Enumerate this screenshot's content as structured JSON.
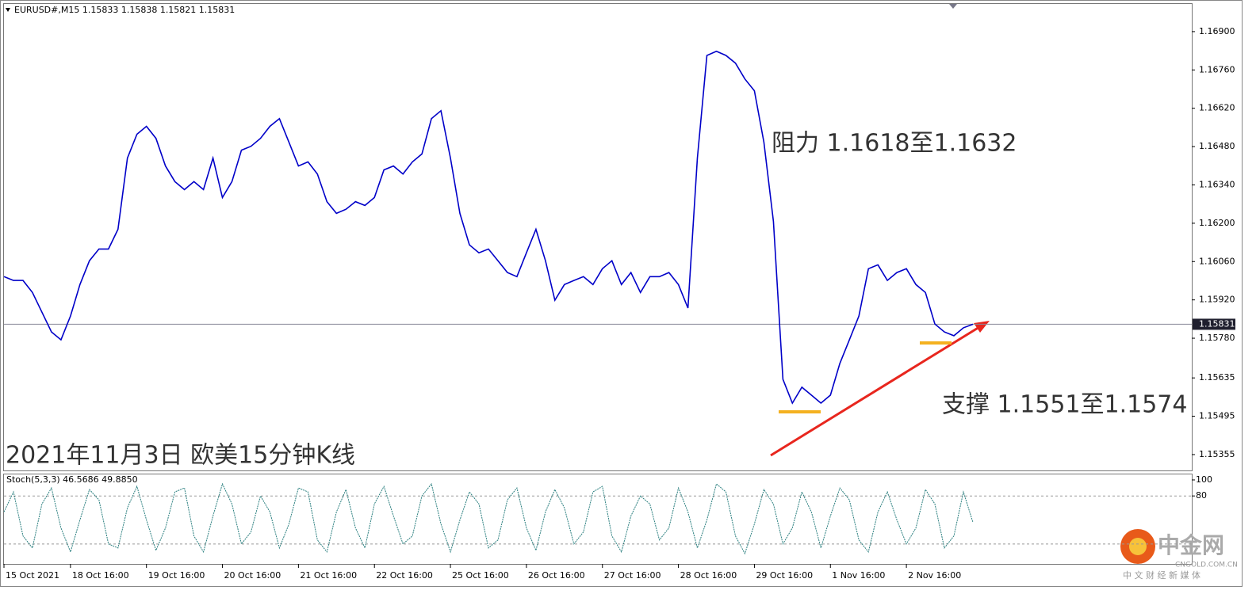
{
  "chart_data": [
    {
      "type": "line",
      "title": "EURUSD#,M15  1.15833 1.15838 1.15821 1.15831",
      "annotations": [
        "阻力 1.1618至1.1632",
        "支撑 1.1551至1.1574",
        "2021年11月3日 欧美15分钟K线"
      ],
      "categories": [
        "15 Oct 2021",
        null,
        null,
        null,
        null,
        null,
        null,
        "18 Oct 16:00",
        null,
        null,
        null,
        null,
        null,
        null,
        null,
        "19 Oct 16:00",
        null,
        null,
        null,
        null,
        null,
        null,
        null,
        "20 Oct 16:00",
        null,
        null,
        null,
        null,
        null,
        null,
        null,
        "21 Oct 16:00",
        null,
        null,
        null,
        null,
        null,
        null,
        null,
        "22 Oct 16:00",
        null,
        null,
        null,
        null,
        null,
        null,
        null,
        "25 Oct 16:00",
        null,
        null,
        null,
        null,
        null,
        null,
        null,
        "26 Oct 16:00",
        null,
        null,
        null,
        null,
        null,
        null,
        null,
        "27 Oct 16:00",
        null,
        null,
        null,
        null,
        null,
        null,
        null,
        "28 Oct 16:00",
        null,
        null,
        null,
        null,
        null,
        null,
        null,
        "29 Oct 16:00",
        null,
        null,
        null,
        null,
        null,
        null,
        null,
        "1 Nov 16:00",
        null,
        null,
        null,
        null,
        null,
        null,
        null,
        "2 Nov 16:00",
        null,
        null,
        null,
        null,
        null,
        null,
        null
      ],
      "series": [
        {
          "name": "EURUSD#",
          "color": "#0000c8",
          "values": [
            1.16005,
            1.15991,
            1.15991,
            1.15947,
            1.15875,
            1.15803,
            1.15774,
            1.15861,
            1.15976,
            1.16063,
            1.16106,
            1.16106,
            1.16178,
            1.16438,
            1.16525,
            1.16554,
            1.1651,
            1.16409,
            1.16352,
            1.16323,
            1.16352,
            1.16323,
            1.16438,
            1.16294,
            1.16352,
            1.16467,
            1.16481,
            1.1651,
            1.16554,
            1.16582,
            1.16496,
            1.16409,
            1.16424,
            1.1638,
            1.16279,
            1.16236,
            1.16251,
            1.16279,
            1.16265,
            1.16294,
            1.16395,
            1.16409,
            1.1638,
            1.16424,
            1.16453,
            1.16582,
            1.16611,
            1.16438,
            1.16236,
            1.16121,
            1.16092,
            1.16106,
            1.16063,
            1.1602,
            1.16005,
            1.16092,
            1.16178,
            1.16063,
            1.15919,
            1.15976,
            1.15991,
            1.16005,
            1.15976,
            1.16034,
            1.16063,
            1.15976,
            1.1602,
            1.15947,
            1.16005,
            1.16005,
            1.1602,
            1.15976,
            1.1589,
            1.16438,
            1.16813,
            1.16828,
            1.16813,
            1.16785,
            1.16727,
            1.16684,
            1.16496,
            1.16207,
            1.1563,
            1.15543,
            1.15601,
            1.15572,
            1.15543,
            1.15572,
            1.15688,
            1.15774,
            1.15861,
            1.16034,
            1.16048,
            1.15991,
            1.1602,
            1.16034,
            1.15976,
            1.15947,
            1.15832,
            1.15803,
            1.15789,
            1.15818,
            1.15831
          ]
        }
      ],
      "ylim": [
        1.15297,
        1.17001
      ],
      "yticks": [
        {
          "value": 1.169,
          "label": "1.16900"
        },
        {
          "value": 1.1676,
          "label": "1.16760"
        },
        {
          "value": 1.1662,
          "label": "1.16620"
        },
        {
          "value": 1.1648,
          "label": "1.16480"
        },
        {
          "value": 1.1634,
          "label": "1.16340"
        },
        {
          "value": 1.162,
          "label": "1.16200"
        },
        {
          "value": 1.1606,
          "label": "1.16060"
        },
        {
          "value": 1.1592,
          "label": "1.15920"
        },
        {
          "value": 1.1578,
          "label": "1.15780"
        },
        1.15635,
        1.15495,
        1.15355
      ],
      "last_price": 1.15831
    },
    {
      "type": "oscillator",
      "title": "Stoch(5,3,3) 46.5686 49.8850",
      "color": "#2a7f7f",
      "values": [
        60,
        85,
        30,
        15,
        70,
        90,
        40,
        10,
        50,
        88,
        75,
        20,
        15,
        65,
        92,
        50,
        12,
        40,
        85,
        90,
        30,
        10,
        55,
        95,
        70,
        20,
        35,
        80,
        60,
        15,
        45,
        90,
        85,
        25,
        10,
        60,
        88,
        40,
        15,
        70,
        92,
        55,
        20,
        30,
        80,
        95,
        45,
        10,
        50,
        85,
        70,
        15,
        25,
        75,
        90,
        40,
        12,
        60,
        88,
        65,
        20,
        35,
        85,
        92,
        30,
        10,
        55,
        80,
        70,
        25,
        40,
        90,
        60,
        15,
        50,
        95,
        85,
        30,
        8,
        45,
        88,
        70,
        20,
        40,
        85,
        60,
        15,
        55,
        90,
        75,
        25,
        10,
        60,
        85,
        50,
        20,
        40,
        88,
        70,
        15,
        30,
        85,
        47
      ],
      "ylim": [
        -4.9,
        106.9
      ],
      "yticks": [
        100,
        80
      ],
      "levels": [
        80,
        20
      ]
    }
  ],
  "watermark": {
    "name": "中金网",
    "site": "CNGOLD.COM.CN",
    "slogan": "中 文 财 经 新 媒 体"
  }
}
